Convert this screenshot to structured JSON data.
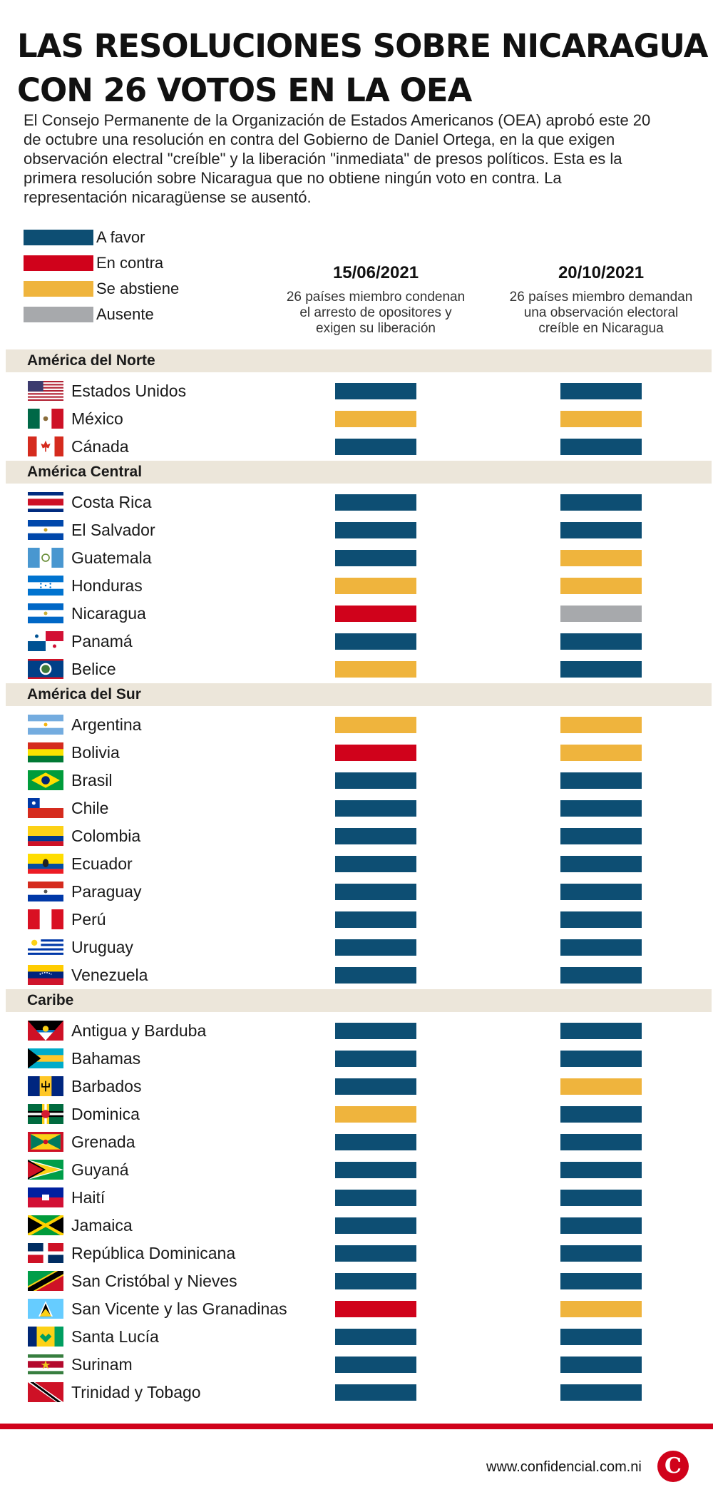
{
  "title_lines": [
    "LAS RESOLUCIONES SOBRE NICARAGUA",
    "CON 26 VOTOS EN LA OEA"
  ],
  "intro": "El Consejo Permanente de la Organización de Estados Americanos (OEA) aprobó este 20 de octubre una resolución en contra del Gobierno de Daniel Ortega, en la que exigen observación electral \"creíble\" y la liberación \"inmediata\" de presos políticos. Esta es la primera resolución sobre Nicaragua que no obtiene ningún voto en contra. La representación nicaragüense se ausentó.",
  "legend": [
    {
      "key": "favor",
      "label": "A favor",
      "color": "#0d4e73"
    },
    {
      "key": "contra",
      "label": "En contra",
      "color": "#d0021b"
    },
    {
      "key": "abstiene",
      "label": "Se abstiene",
      "color": "#efb43d"
    },
    {
      "key": "ausente",
      "label": "Ausente",
      "color": "#a7a9ac"
    }
  ],
  "columns": [
    {
      "date": "15/06/2021",
      "desc": [
        "26 países miembro condenan",
        "el arresto de opositores y",
        "exigen su liberación"
      ]
    },
    {
      "date": "20/10/2021",
      "desc": [
        "26 países miembro demandan",
        "una observación electoral",
        "creíble en Nicaragua"
      ]
    }
  ],
  "chart_data": {
    "type": "table",
    "title": "LAS RESOLUCIONES SOBRE NICARAGUA CON 26 VOTOS EN LA OEA",
    "columns": [
      "15/06/2021",
      "20/10/2021"
    ],
    "regions": [
      {
        "name": "América del Norte",
        "countries": [
          {
            "name": "Estados Unidos",
            "flag": "us-flag-icon",
            "votes": [
              "favor",
              "favor"
            ]
          },
          {
            "name": "México",
            "flag": "mexico-flag-icon",
            "votes": [
              "abstiene",
              "abstiene"
            ]
          },
          {
            "name": "Cánada",
            "flag": "canada-flag-icon",
            "votes": [
              "favor",
              "favor"
            ]
          }
        ]
      },
      {
        "name": "América Central",
        "countries": [
          {
            "name": "Costa Rica",
            "flag": "costa-rica-flag-icon",
            "votes": [
              "favor",
              "favor"
            ]
          },
          {
            "name": "El Salvador",
            "flag": "el-salvador-flag-icon",
            "votes": [
              "favor",
              "favor"
            ]
          },
          {
            "name": "Guatemala",
            "flag": "guatemala-flag-icon",
            "votes": [
              "favor",
              "abstiene"
            ]
          },
          {
            "name": "Honduras",
            "flag": "honduras-flag-icon",
            "votes": [
              "abstiene",
              "abstiene"
            ]
          },
          {
            "name": "Nicaragua",
            "flag": "nicaragua-flag-icon",
            "votes": [
              "contra",
              "ausente"
            ]
          },
          {
            "name": "Panamá",
            "flag": "panama-flag-icon",
            "votes": [
              "favor",
              "favor"
            ]
          },
          {
            "name": "Belice",
            "flag": "belize-flag-icon",
            "votes": [
              "abstiene",
              "favor"
            ]
          }
        ]
      },
      {
        "name": "América del Sur",
        "countries": [
          {
            "name": "Argentina",
            "flag": "argentina-flag-icon",
            "votes": [
              "abstiene",
              "abstiene"
            ]
          },
          {
            "name": "Bolivia",
            "flag": "bolivia-flag-icon",
            "votes": [
              "contra",
              "abstiene"
            ]
          },
          {
            "name": "Brasil",
            "flag": "brazil-flag-icon",
            "votes": [
              "favor",
              "favor"
            ]
          },
          {
            "name": "Chile",
            "flag": "chile-flag-icon",
            "votes": [
              "favor",
              "favor"
            ]
          },
          {
            "name": "Colombia",
            "flag": "colombia-flag-icon",
            "votes": [
              "favor",
              "favor"
            ]
          },
          {
            "name": "Ecuador",
            "flag": "ecuador-flag-icon",
            "votes": [
              "favor",
              "favor"
            ]
          },
          {
            "name": "Paraguay",
            "flag": "paraguay-flag-icon",
            "votes": [
              "favor",
              "favor"
            ]
          },
          {
            "name": "Perú",
            "flag": "peru-flag-icon",
            "votes": [
              "favor",
              "favor"
            ]
          },
          {
            "name": "Uruguay",
            "flag": "uruguay-flag-icon",
            "votes": [
              "favor",
              "favor"
            ]
          },
          {
            "name": "Venezuela",
            "flag": "venezuela-flag-icon",
            "votes": [
              "favor",
              "favor"
            ]
          }
        ]
      },
      {
        "name": "Caribe",
        "countries": [
          {
            "name": "Antigua y Barduba",
            "flag": "antigua-flag-icon",
            "votes": [
              "favor",
              "favor"
            ]
          },
          {
            "name": "Bahamas",
            "flag": "bahamas-flag-icon",
            "votes": [
              "favor",
              "favor"
            ]
          },
          {
            "name": "Barbados",
            "flag": "barbados-flag-icon",
            "votes": [
              "favor",
              "abstiene"
            ]
          },
          {
            "name": "Dominica",
            "flag": "dominica-flag-icon",
            "votes": [
              "abstiene",
              "favor"
            ]
          },
          {
            "name": "Grenada",
            "flag": "grenada-flag-icon",
            "votes": [
              "favor",
              "favor"
            ]
          },
          {
            "name": "Guyaná",
            "flag": "guyana-flag-icon",
            "votes": [
              "favor",
              "favor"
            ]
          },
          {
            "name": "Haití",
            "flag": "haiti-flag-icon",
            "votes": [
              "favor",
              "favor"
            ]
          },
          {
            "name": "Jamaica",
            "flag": "jamaica-flag-icon",
            "votes": [
              "favor",
              "favor"
            ]
          },
          {
            "name": "República Dominicana",
            "flag": "dominican-republic-flag-icon",
            "votes": [
              "favor",
              "favor"
            ]
          },
          {
            "name": "San Cristóbal y Nieves",
            "flag": "st-kitts-flag-icon",
            "votes": [
              "favor",
              "favor"
            ]
          },
          {
            "name": "San Vicente y las Granadinas",
            "flag": "st-lucia-flag-icon",
            "votes": [
              "contra",
              "abstiene"
            ]
          },
          {
            "name": "Santa Lucía",
            "flag": "st-vincent-flag-icon",
            "votes": [
              "favor",
              "favor"
            ]
          },
          {
            "name": "Surinam",
            "flag": "suriname-flag-icon",
            "votes": [
              "favor",
              "favor"
            ]
          },
          {
            "name": "Trinidad y Tobago",
            "flag": "trinidad-flag-icon",
            "votes": [
              "favor",
              "favor"
            ]
          }
        ]
      }
    ]
  },
  "footer": {
    "site": "www.confidencial.com.ni",
    "logo_letter": "C"
  }
}
